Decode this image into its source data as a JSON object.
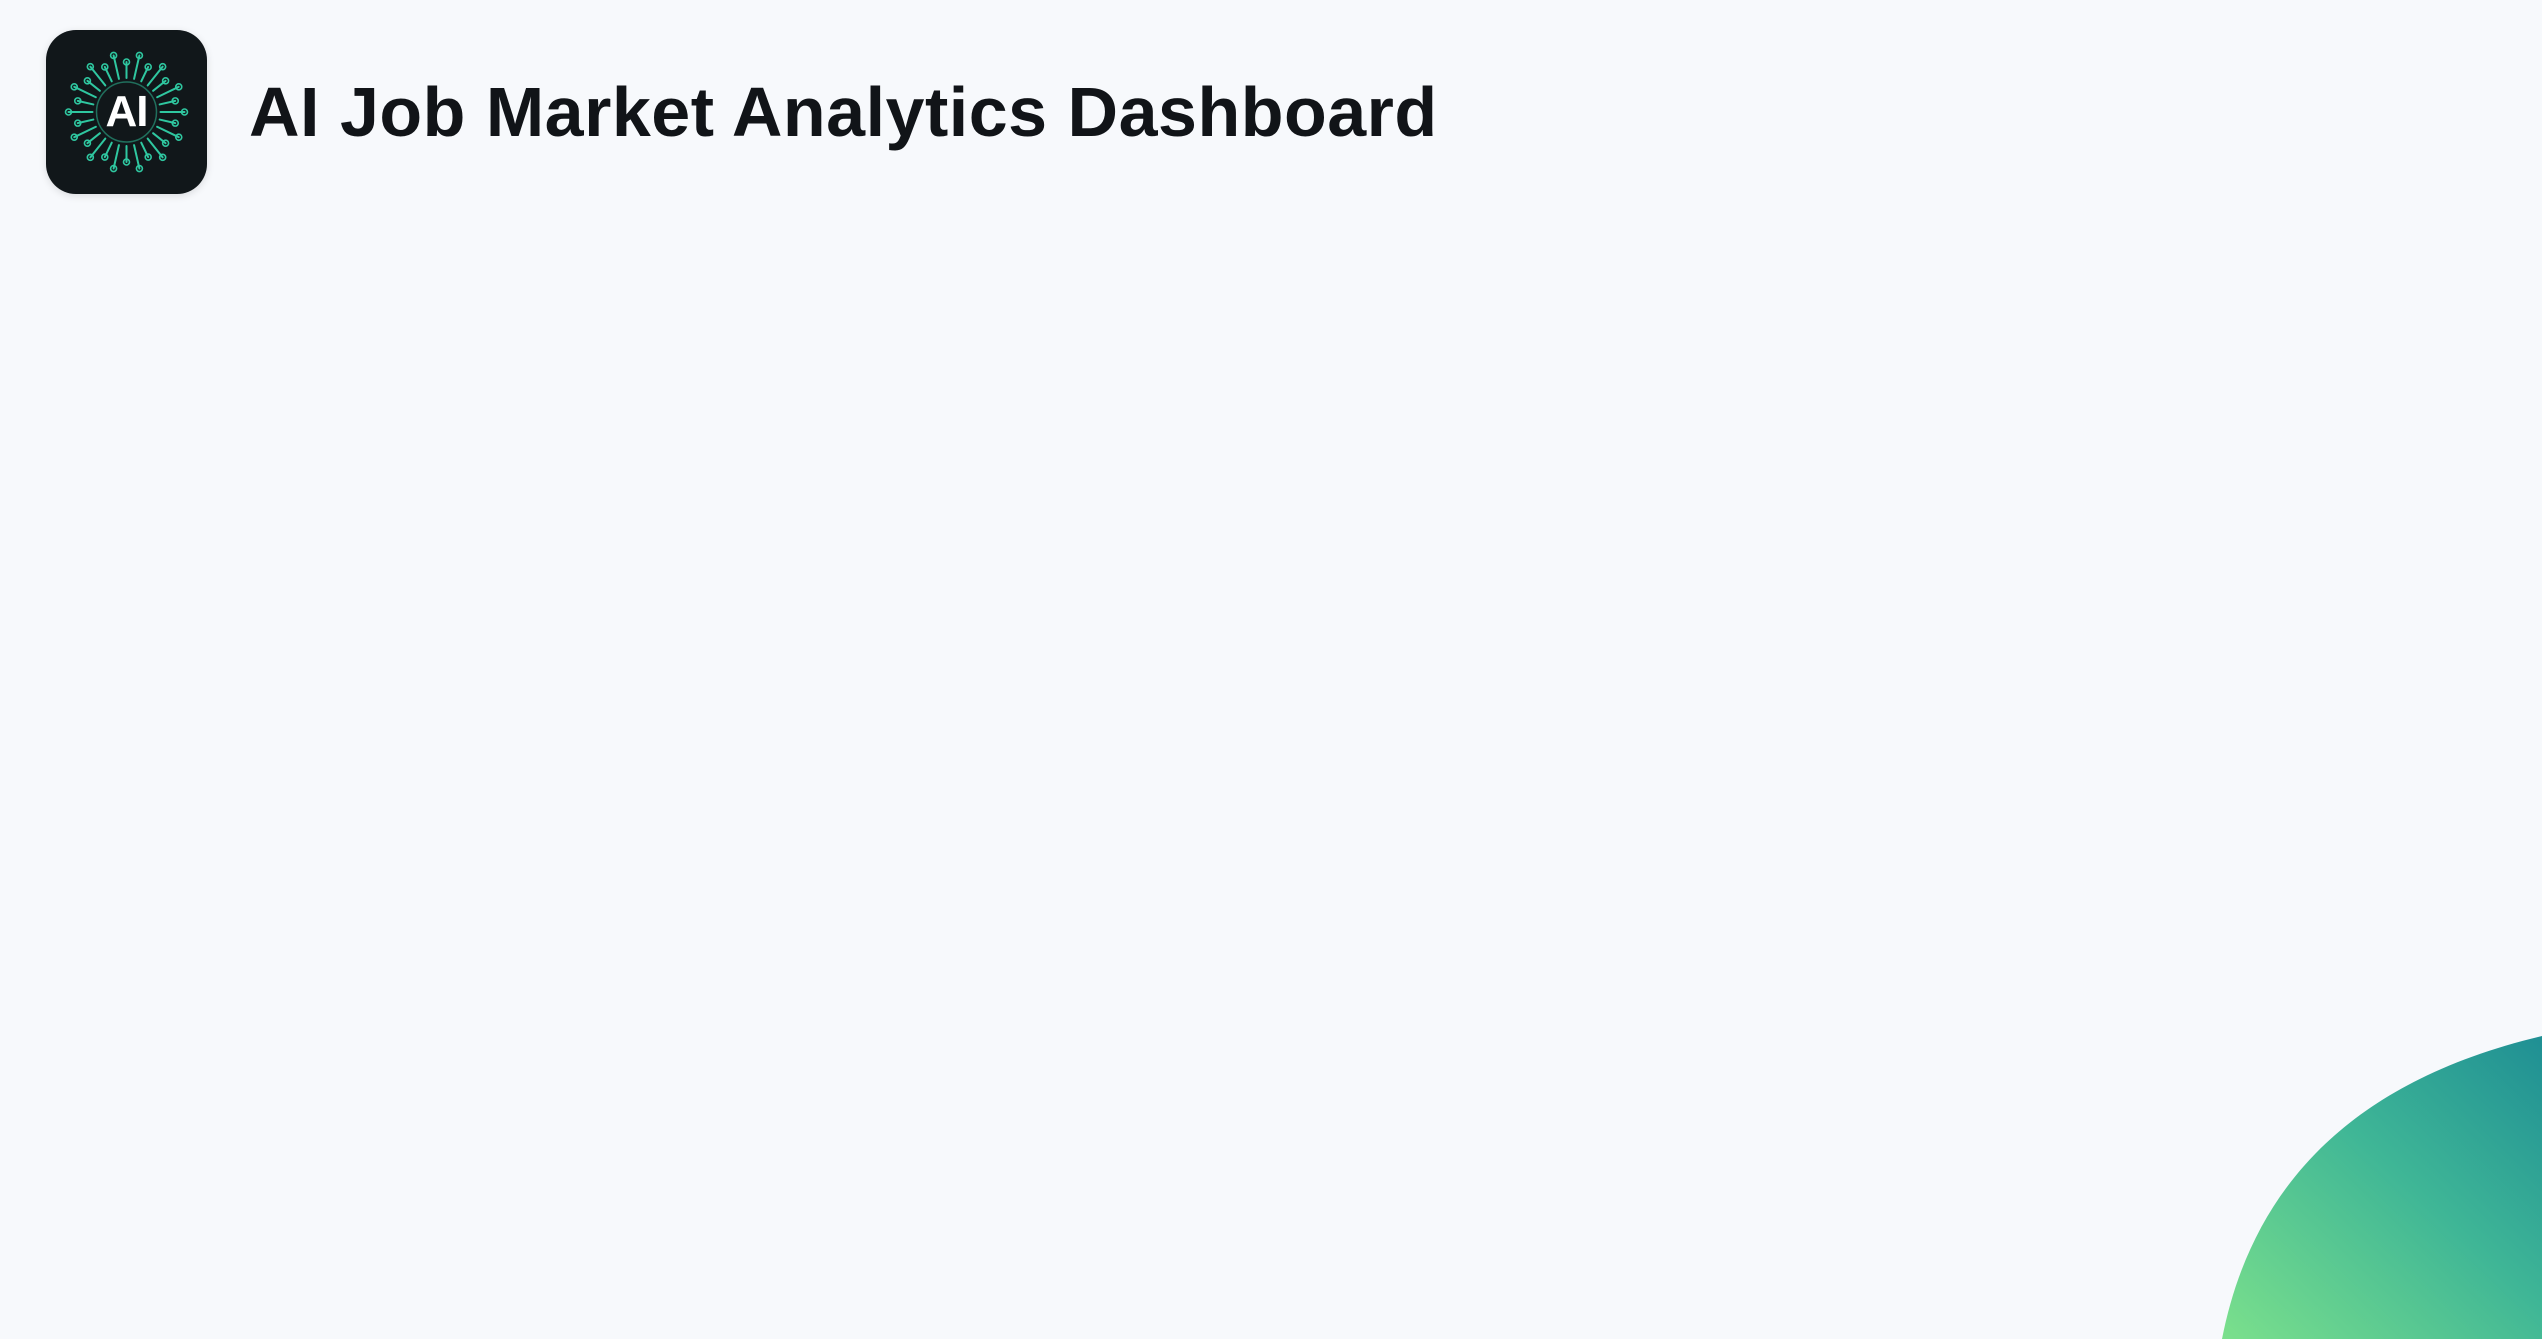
{
  "header": {
    "logo_text": "AI",
    "title": "AI Job Market Analytics Dashboard"
  },
  "icons": {
    "logo": "ai-circuit-logo-icon",
    "decoration": "gradient-blob-decoration"
  },
  "colors": {
    "background": "#f7f9fc",
    "title_text": "#111418",
    "logo_bg": "#11171a",
    "logo_accent": "#2fc7a0",
    "blob_start": "#7be08c",
    "blob_end": "#1f8f94"
  }
}
